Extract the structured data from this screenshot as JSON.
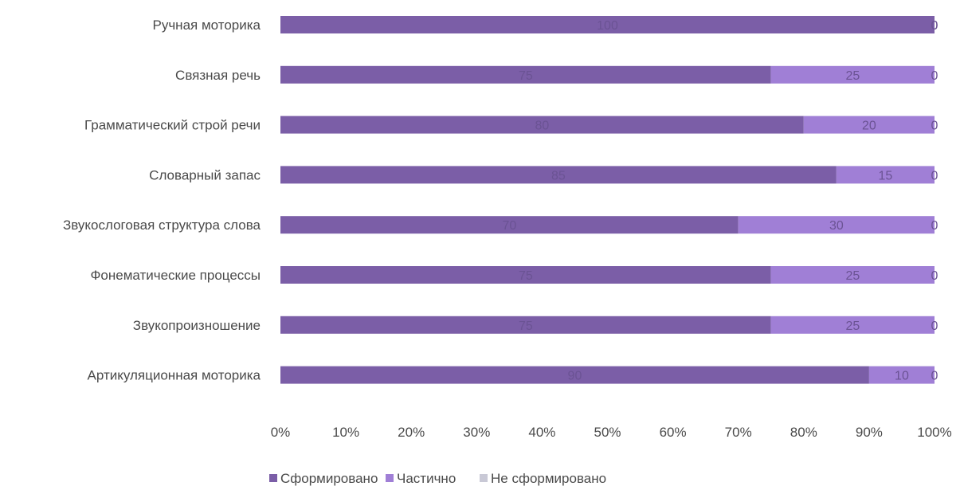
{
  "chart_data": {
    "type": "bar",
    "orientation": "horizontal",
    "stacked": "percent",
    "categories": [
      "Ручная моторика",
      "Связная речь",
      "Грамматический строй речи",
      "Словарный запас",
      "Звукослоговая структура слова",
      "Фонематические процессы",
      "Звукопроизношение",
      "Артикуляционная моторика"
    ],
    "series": [
      {
        "name": "Сформировано",
        "color": "#7b5ea7",
        "values": [
          100,
          75,
          80,
          85,
          70,
          75,
          75,
          90
        ]
      },
      {
        "name": "Частично",
        "color": "#a07fd6",
        "values": [
          0,
          25,
          20,
          15,
          30,
          25,
          25,
          10
        ]
      },
      {
        "name": "Не сформировано",
        "color": "#c9c9d6",
        "values": [
          0,
          0,
          0,
          0,
          0,
          0,
          0,
          0
        ]
      }
    ],
    "xticks": [
      "0%",
      "10%",
      "20%",
      "30%",
      "40%",
      "50%",
      "60%",
      "70%",
      "80%",
      "90%",
      "100%"
    ],
    "xlim": [
      0,
      100
    ],
    "grid": false,
    "legend_position": "bottom"
  }
}
